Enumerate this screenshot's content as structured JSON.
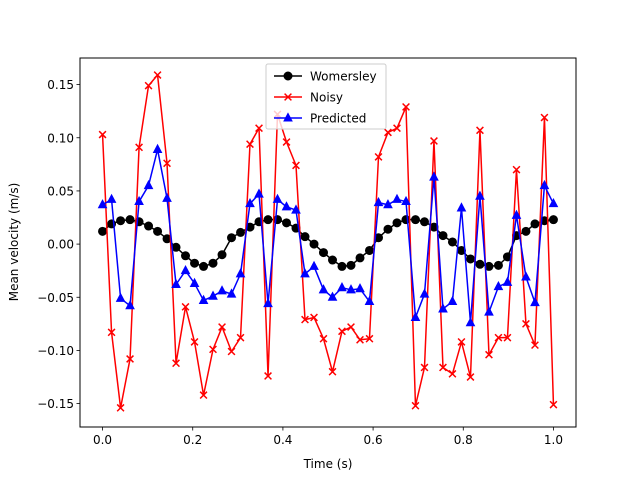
{
  "chart_data": {
    "type": "line",
    "title": "",
    "xlabel": "Time (s)",
    "ylabel": "Mean velocity (m/s)",
    "xlim": [
      -0.05,
      1.05
    ],
    "ylim": [
      -0.172,
      0.175
    ],
    "xticks": [
      0.0,
      0.2,
      0.4,
      0.6,
      0.8,
      1.0
    ],
    "xtick_labels": [
      "0.0",
      "0.2",
      "0.4",
      "0.6",
      "0.8",
      "1.0"
    ],
    "yticks": [
      -0.15,
      -0.1,
      -0.05,
      0.0,
      0.05,
      0.1,
      0.15
    ],
    "ytick_labels": [
      "−0.15",
      "−0.10",
      "−0.05",
      "0.00",
      "0.05",
      "0.10",
      "0.15"
    ],
    "grid": false,
    "legend_position": "top-center",
    "x": [
      0.0,
      0.02,
      0.04,
      0.061,
      0.081,
      0.102,
      0.122,
      0.143,
      0.163,
      0.184,
      0.204,
      0.224,
      0.245,
      0.265,
      0.286,
      0.306,
      0.327,
      0.347,
      0.367,
      0.388,
      0.408,
      0.429,
      0.449,
      0.469,
      0.49,
      0.51,
      0.531,
      0.551,
      0.571,
      0.592,
      0.612,
      0.633,
      0.653,
      0.673,
      0.694,
      0.714,
      0.735,
      0.755,
      0.776,
      0.796,
      0.816,
      0.837,
      0.857,
      0.878,
      0.898,
      0.918,
      0.939,
      0.959,
      0.98,
      1.0
    ],
    "series": [
      {
        "name": "Womersley",
        "color": "#000000",
        "marker": "circle",
        "values": [
          0.012,
          0.019,
          0.022,
          0.023,
          0.021,
          0.017,
          0.012,
          0.005,
          -0.003,
          -0.011,
          -0.018,
          -0.021,
          -0.018,
          -0.01,
          0.006,
          0.011,
          0.016,
          0.021,
          0.023,
          0.023,
          0.02,
          0.015,
          0.007,
          0.0,
          -0.008,
          -0.015,
          -0.021,
          -0.02,
          -0.013,
          -0.006,
          0.006,
          0.014,
          0.02,
          0.023,
          0.023,
          0.021,
          0.016,
          0.008,
          0.002,
          -0.006,
          -0.014,
          -0.019,
          -0.021,
          -0.02,
          -0.012,
          0.008,
          0.012,
          0.019,
          0.022,
          0.023
        ]
      },
      {
        "name": "Noisy",
        "color": "#ff0000",
        "marker": "x",
        "values": [
          0.103,
          -0.083,
          -0.154,
          -0.108,
          0.091,
          0.149,
          0.159,
          0.076,
          -0.112,
          -0.059,
          -0.092,
          -0.142,
          -0.099,
          -0.078,
          -0.101,
          -0.088,
          0.094,
          0.109,
          -0.124,
          0.122,
          0.096,
          0.074,
          -0.071,
          -0.069,
          -0.089,
          -0.12,
          -0.082,
          -0.078,
          -0.09,
          -0.089,
          0.082,
          0.105,
          0.109,
          0.129,
          -0.152,
          -0.116,
          0.097,
          -0.116,
          -0.122,
          -0.092,
          -0.125,
          0.107,
          -0.104,
          -0.088,
          -0.088,
          0.07,
          -0.075,
          -0.095,
          0.119,
          -0.151
        ]
      },
      {
        "name": "Predicted",
        "color": "#0000ff",
        "marker": "triangle",
        "values": [
          0.037,
          0.042,
          -0.051,
          -0.058,
          0.04,
          0.055,
          0.089,
          0.043,
          -0.038,
          -0.025,
          -0.037,
          -0.053,
          -0.049,
          -0.044,
          -0.047,
          -0.028,
          0.038,
          0.047,
          -0.056,
          0.042,
          0.035,
          0.032,
          -0.028,
          -0.021,
          -0.043,
          -0.05,
          -0.041,
          -0.043,
          -0.042,
          -0.054,
          0.039,
          0.037,
          0.042,
          0.04,
          -0.069,
          -0.047,
          0.063,
          -0.061,
          -0.054,
          0.034,
          -0.074,
          0.045,
          -0.064,
          -0.04,
          -0.036,
          0.027,
          -0.031,
          -0.055,
          0.055,
          0.038
        ]
      }
    ]
  }
}
